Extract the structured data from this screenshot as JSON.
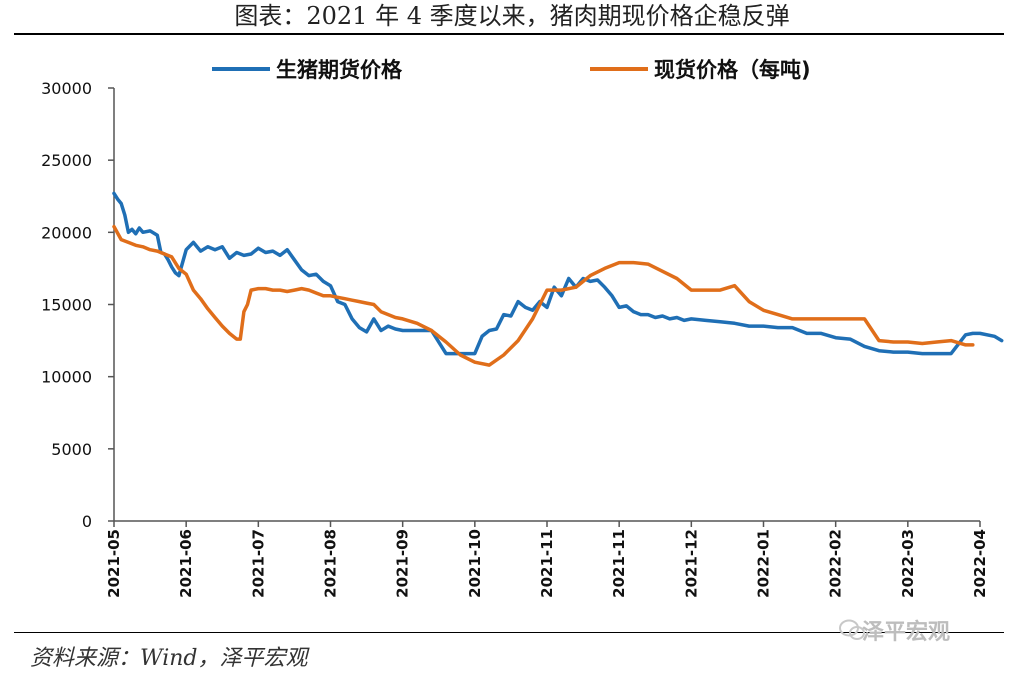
{
  "title": "图表：2021 年 4 季度以来，猪肉期现价格企稳反弹",
  "source": "资料来源：Wind，泽平宏观",
  "watermark": "泽平宏观",
  "chart_data": {
    "type": "line",
    "ylim": [
      0,
      30000
    ],
    "yticks": [
      "0",
      "5000",
      "10000",
      "15000",
      "20000",
      "25000",
      "30000"
    ],
    "xticks": [
      "2021-05",
      "2021-06",
      "2021-07",
      "2021-08",
      "2021-09",
      "2021-10",
      "2021-11",
      "2021-11",
      "2021-12",
      "2022-01",
      "2022-02",
      "2022-03",
      "2022-04"
    ],
    "legend_position": "top",
    "series": [
      {
        "name": "生猪期货价格",
        "color": "#1f6fb5",
        "x": [
          0,
          0.05,
          0.1,
          0.15,
          0.2,
          0.25,
          0.3,
          0.35,
          0.4,
          0.5,
          0.6,
          0.65,
          0.7,
          0.75,
          0.8,
          0.85,
          0.9,
          1.0,
          1.1,
          1.2,
          1.3,
          1.4,
          1.5,
          1.6,
          1.7,
          1.8,
          1.9,
          2.0,
          2.1,
          2.2,
          2.3,
          2.4,
          2.5,
          2.6,
          2.7,
          2.8,
          2.9,
          3.0,
          3.1,
          3.2,
          3.3,
          3.4,
          3.5,
          3.6,
          3.7,
          3.8,
          3.9,
          4.0,
          4.2,
          4.4,
          4.6,
          4.7,
          4.8,
          4.9,
          5.0,
          5.1,
          5.2,
          5.3,
          5.4,
          5.5,
          5.6,
          5.7,
          5.8,
          5.9,
          6.0,
          6.1,
          6.2,
          6.3,
          6.4,
          6.5,
          6.6,
          6.7,
          6.8,
          6.9,
          7.0,
          7.1,
          7.2,
          7.3,
          7.4,
          7.5,
          7.6,
          7.7,
          7.8,
          7.9,
          8.0,
          8.2,
          8.4,
          8.6,
          8.8,
          9.0,
          9.2,
          9.4,
          9.6,
          9.8,
          10.0,
          10.2,
          10.4,
          10.6,
          10.8,
          10.9,
          11.0,
          11.2,
          11.4,
          11.6,
          11.8,
          11.9,
          12.0,
          12.2,
          12.3
        ],
        "values": [
          22700,
          22300,
          22000,
          21200,
          20000,
          20200,
          19900,
          20300,
          20000,
          20100,
          19800,
          18600,
          18500,
          18100,
          17600,
          17200,
          17000,
          18800,
          19300,
          18700,
          19000,
          18800,
          19000,
          18200,
          18600,
          18400,
          18500,
          18900,
          18600,
          18700,
          18400,
          18800,
          18100,
          17400,
          17000,
          17100,
          16600,
          16300,
          15200,
          15000,
          14000,
          13400,
          13100,
          14000,
          13200,
          13500,
          13300,
          13200,
          13200,
          13200,
          11600,
          11600,
          11600,
          11600,
          11600,
          12800,
          13200,
          13300,
          14300,
          14200,
          15200,
          14800,
          14600,
          15200,
          14800,
          16200,
          15600,
          16800,
          16200,
          16800,
          16600,
          16700,
          16200,
          15600,
          14800,
          14900,
          14500,
          14300,
          14300,
          14100,
          14200,
          14000,
          14100,
          13900,
          14000,
          13900,
          13800,
          13700,
          13500,
          13500,
          13400,
          13400,
          13000,
          13000,
          12700,
          12600,
          12100,
          11800,
          11700,
          11700,
          11700,
          11600,
          11600,
          11600,
          12900,
          13000,
          13000,
          12800,
          12500
        ]
      },
      {
        "name": "现货价格（每吨)",
        "color": "#e06e1a",
        "x": [
          0,
          0.1,
          0.2,
          0.3,
          0.4,
          0.5,
          0.6,
          0.7,
          0.8,
          0.9,
          1.0,
          1.1,
          1.2,
          1.3,
          1.4,
          1.5,
          1.6,
          1.7,
          1.75,
          1.8,
          1.85,
          1.9,
          2.0,
          2.1,
          2.2,
          2.3,
          2.4,
          2.5,
          2.6,
          2.7,
          2.8,
          2.9,
          3.0,
          3.1,
          3.2,
          3.3,
          3.4,
          3.5,
          3.6,
          3.7,
          3.8,
          3.9,
          4.0,
          4.2,
          4.4,
          4.6,
          4.8,
          5.0,
          5.2,
          5.4,
          5.6,
          5.8,
          6.0,
          6.2,
          6.4,
          6.6,
          6.8,
          7.0,
          7.2,
          7.4,
          7.6,
          7.8,
          8.0,
          8.2,
          8.4,
          8.6,
          8.8,
          9.0,
          9.2,
          9.4,
          9.6,
          9.8,
          10.0,
          10.2,
          10.4,
          10.6,
          10.8,
          11.0,
          11.2,
          11.4,
          11.6,
          11.8,
          11.9
        ],
        "values": [
          20400,
          19500,
          19300,
          19100,
          19000,
          18800,
          18700,
          18500,
          18300,
          17500,
          17100,
          16000,
          15400,
          14700,
          14100,
          13500,
          13000,
          12600,
          12600,
          14500,
          15000,
          16000,
          16100,
          16100,
          16000,
          16000,
          15900,
          16000,
          16100,
          16000,
          15800,
          15600,
          15600,
          15500,
          15400,
          15300,
          15200,
          15100,
          15000,
          14500,
          14300,
          14100,
          14000,
          13700,
          13200,
          12400,
          11500,
          11000,
          10800,
          11500,
          12500,
          14000,
          16000,
          16000,
          16200,
          17000,
          17500,
          17900,
          17900,
          17800,
          17300,
          16800,
          16000,
          16000,
          16000,
          16300,
          15200,
          14600,
          14300,
          14000,
          14000,
          14000,
          14000,
          14000,
          14000,
          12500,
          12400,
          12400,
          12300,
          12400,
          12500,
          12200,
          12200
        ]
      }
    ]
  }
}
